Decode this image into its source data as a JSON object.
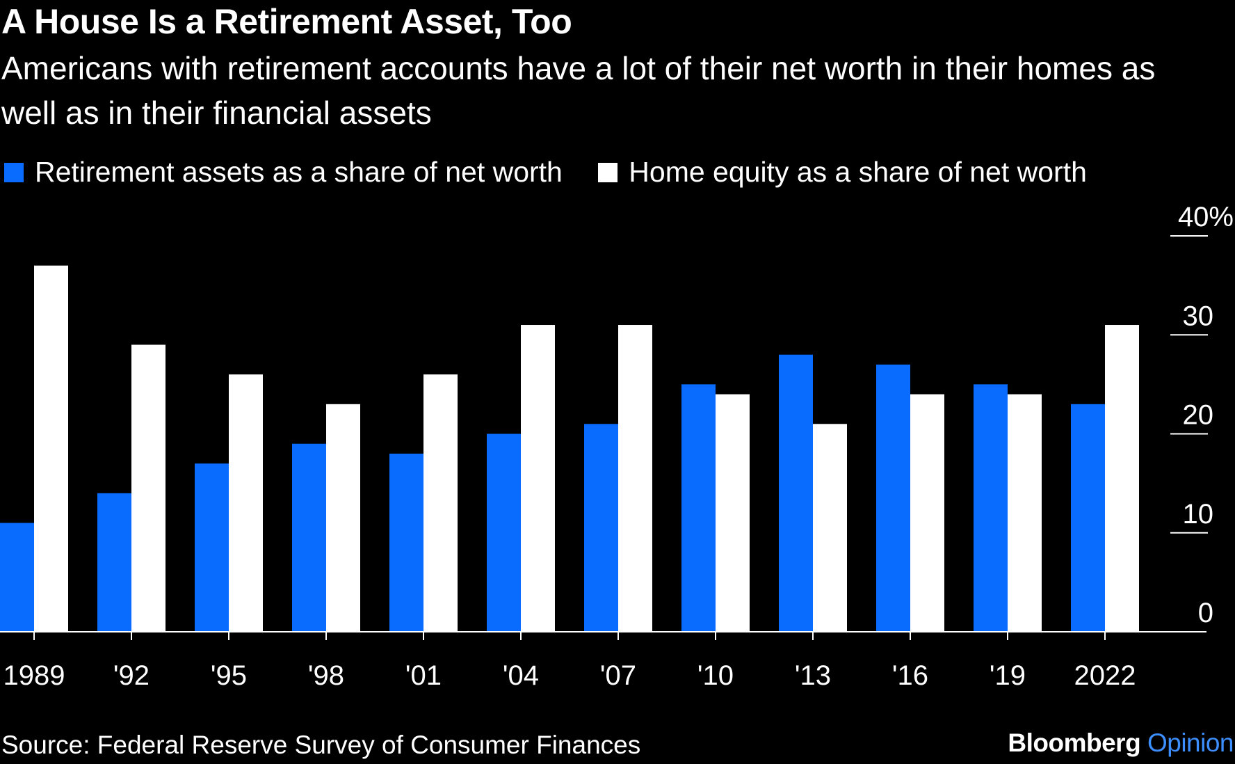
{
  "title": "A House Is a Retirement Asset, Too",
  "subtitle": "Americans with retirement accounts have a lot of their net worth in their homes as well as in their financial assets",
  "source": "Source: Federal Reserve Survey of Consumer Finances",
  "brand": {
    "name": "Bloomberg",
    "section": "Opinion"
  },
  "colors": {
    "retirement": "#0a6cff",
    "home": "#ffffff",
    "background": "#000000"
  },
  "chart_data": {
    "type": "bar",
    "categories": [
      "1989",
      "'92",
      "'95",
      "'98",
      "'01",
      "'04",
      "'07",
      "'10",
      "'13",
      "'16",
      "'19",
      "2022"
    ],
    "series": [
      {
        "name": "Retirement assets as a share of net worth",
        "values": [
          11,
          14,
          17,
          19,
          18,
          20,
          21,
          25,
          28,
          27,
          25,
          23
        ]
      },
      {
        "name": "Home equity as a share of net worth",
        "values": [
          37,
          29,
          26,
          23,
          26,
          31,
          31,
          24,
          21,
          24,
          24,
          31
        ]
      }
    ],
    "yticks": [
      0,
      10,
      20,
      30,
      40
    ],
    "ytick_labels": [
      "0",
      "10",
      "20",
      "30",
      "40%"
    ],
    "ylim": [
      0,
      40
    ],
    "yaxis_position": "right",
    "legend_position": "top-left",
    "grid": false
  }
}
